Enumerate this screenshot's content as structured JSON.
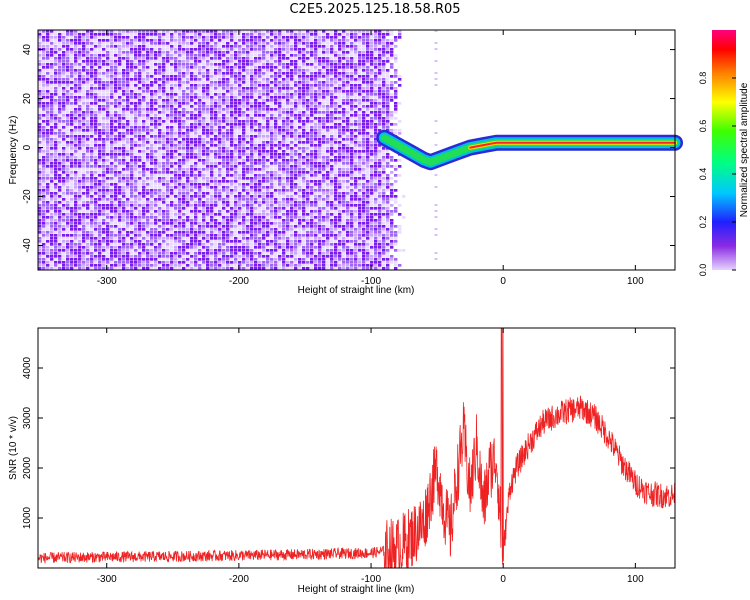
{
  "title": "C2E5.2025.125.18.58.R05",
  "colors": {
    "spectrogram_noise": "#8a2be2",
    "snr_line": "#ee2222",
    "axis": "#000000"
  },
  "chart_data": [
    {
      "type": "heatmap",
      "xlabel": "Height of straight line (km)",
      "ylabel": "Frequency (Hz)",
      "xlim": [
        -352,
        130
      ],
      "ylim": [
        -50,
        48
      ],
      "xticks": [
        -300,
        -200,
        -100,
        0,
        100
      ],
      "xtick_labels": [
        "-300",
        "-200",
        "-100",
        "0",
        "100"
      ],
      "yticks": [
        -40,
        -20,
        0,
        20,
        40
      ],
      "ytick_labels": [
        "-40",
        "-20",
        "0",
        "20",
        "40"
      ],
      "colorbar": {
        "label": "Normalized spectral amplitude",
        "range": [
          0,
          1
        ],
        "ticks": [
          0.0,
          0.2,
          0.4,
          0.6,
          0.8
        ],
        "tick_labels": [
          "0.0",
          "0.2",
          "0.4",
          "0.6",
          "0.8"
        ],
        "colormap": "rainbow (violet → blue → cyan → green → yellow → red → magenta)"
      },
      "noise_region_x": [
        -352,
        -90
      ],
      "signal_trace": {
        "x": [
          -90,
          -80,
          -70,
          -60,
          -55,
          -45,
          -35,
          -25,
          -15,
          -5,
          0,
          20,
          40,
          60,
          80,
          100,
          130
        ],
        "y": [
          4,
          1,
          -2,
          -5,
          -6,
          -4,
          -2,
          0,
          1,
          2,
          2,
          2,
          2,
          2,
          2,
          2,
          2
        ]
      }
    },
    {
      "type": "line",
      "xlabel": "Height of straight line (km)",
      "ylabel": "SNR (10 * v/v)",
      "xlim": [
        -352,
        130
      ],
      "ylim": [
        0,
        4800
      ],
      "xticks": [
        -300,
        -200,
        -100,
        0,
        100
      ],
      "xtick_labels": [
        "-300",
        "-200",
        "-100",
        "0",
        "100"
      ],
      "yticks": [
        1000,
        2000,
        3000,
        4000
      ],
      "ytick_labels": [
        "1000",
        "2000",
        "3000",
        "4000"
      ],
      "series": [
        {
          "x": [
            -352,
            -300,
            -250,
            -200,
            -150,
            -120,
            -100,
            -80,
            -70,
            -60,
            -55,
            -50,
            -45,
            -40,
            -35,
            -30,
            -25,
            -20,
            -15,
            -10,
            -5,
            -2,
            0,
            5,
            10,
            20,
            30,
            40,
            50,
            60,
            70,
            80,
            90,
            100,
            110,
            120,
            130
          ],
          "values": [
            200,
            220,
            230,
            250,
            270,
            290,
            300,
            380,
            600,
            900,
            1500,
            2000,
            1200,
            700,
            1800,
            2700,
            1500,
            2500,
            1200,
            2000,
            2200,
            900,
            300,
            1600,
            2000,
            2500,
            2900,
            3050,
            3150,
            3200,
            3000,
            2600,
            2100,
            1700,
            1500,
            1450,
            1450
          ]
        }
      ]
    }
  ]
}
